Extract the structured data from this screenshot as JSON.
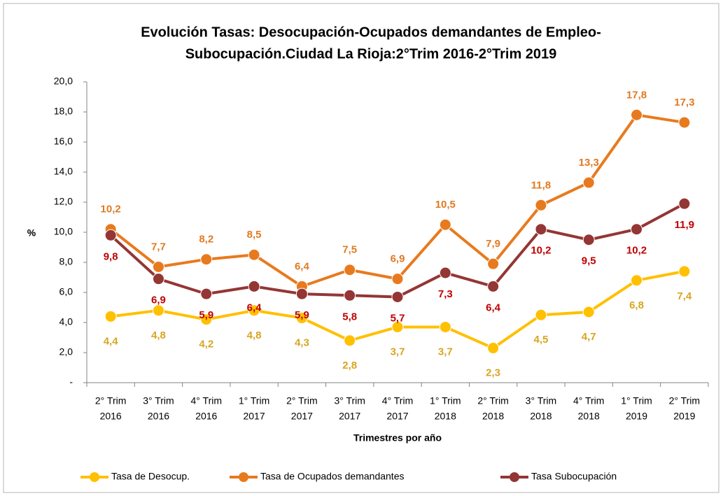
{
  "chart_data": {
    "type": "line",
    "title": [
      "Evolución Tasas: Desocupación-Ocupados  demandantes de Empleo-",
      "Subocupación.Ciudad  La Rioja:2°Trim  2016-2°Trim 2019"
    ],
    "x_label": "Trimestres por año",
    "y_label": "%",
    "categories": [
      [
        "2° Trim",
        "2016"
      ],
      [
        "3° Trim",
        "2016"
      ],
      [
        "4° Trim",
        "2016"
      ],
      [
        "1° Trim",
        "2017"
      ],
      [
        "2° Trim",
        "2017"
      ],
      [
        "3° Trim",
        "2017"
      ],
      [
        "4° Trim",
        "2017"
      ],
      [
        "1° Trim",
        "2018"
      ],
      [
        "2° Trim",
        "2018"
      ],
      [
        "3° Trim",
        "2018"
      ],
      [
        "4° Trim",
        "2018"
      ],
      [
        "1° Trim",
        "2019"
      ],
      [
        "2° Trim",
        "2019"
      ]
    ],
    "ylim": [
      0,
      20
    ],
    "yticks": [
      {
        "value": 0,
        "label": "-"
      },
      {
        "value": 2,
        "label": "2,0"
      },
      {
        "value": 4,
        "label": "4,0"
      },
      {
        "value": 6,
        "label": "6,0"
      },
      {
        "value": 8,
        "label": "8,0"
      },
      {
        "value": 10,
        "label": "10,0"
      },
      {
        "value": 12,
        "label": "12,0"
      },
      {
        "value": 14,
        "label": "14,0"
      },
      {
        "value": 16,
        "label": "16,0"
      },
      {
        "value": 18,
        "label": "18,0"
      },
      {
        "value": 20,
        "label": "20,0"
      }
    ],
    "legend": "bottom",
    "series": [
      {
        "name": "Tasa de Desocup.",
        "color": "#ffc000",
        "label_color": "#d9a520",
        "values": [
          4.4,
          4.8,
          4.2,
          4.8,
          4.3,
          2.8,
          3.7,
          3.7,
          2.3,
          4.5,
          4.7,
          6.8,
          7.4
        ],
        "value_labels": [
          "4,4",
          "4,8",
          "4,2",
          "4,8",
          "4,3",
          "2,8",
          "3,7",
          "3,7",
          "2,3",
          "4,5",
          "4,7",
          "6,8",
          "7,4"
        ]
      },
      {
        "name": "Tasa de Ocupados demandantes",
        "color": "#e87a1e",
        "label_color": "#e07a22",
        "values": [
          10.2,
          7.7,
          8.2,
          8.5,
          6.4,
          7.5,
          6.9,
          10.5,
          7.9,
          11.8,
          13.3,
          17.8,
          17.3
        ],
        "value_labels": [
          "10,2",
          "7,7",
          "8,2",
          "8,5",
          "6,4",
          "7,5",
          "6,9",
          "10,5",
          "7,9",
          "11,8",
          "13,3",
          "17,8",
          "17,3"
        ]
      },
      {
        "name": "Tasa Subocupación",
        "color": "#943634",
        "label_color": "#c00000",
        "values": [
          9.8,
          6.9,
          5.9,
          6.4,
          5.9,
          5.8,
          5.7,
          7.3,
          6.4,
          10.2,
          9.5,
          10.2,
          11.9
        ],
        "value_labels": [
          "9,8",
          "6,9",
          "5,9",
          "6,4",
          "5,9",
          "5,8",
          "5,7",
          "7,3",
          "6,4",
          "10,2",
          "9,5",
          "10,2",
          "11,9"
        ]
      }
    ]
  }
}
